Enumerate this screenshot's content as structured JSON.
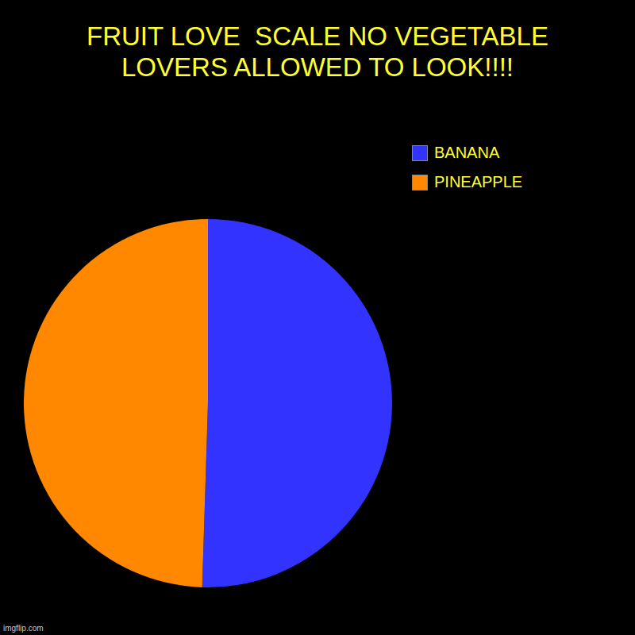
{
  "chart_data": {
    "type": "pie",
    "title": "FRUIT LOVE  SCALE NO VEGETABLE LOVERS ALLOWED TO LOOK!!!!",
    "categories": [
      "BANANA",
      "PINEAPPLE"
    ],
    "values": [
      50.5,
      49.5
    ],
    "colors": [
      "#3333ff",
      "#ff8800"
    ],
    "legend": "top-right",
    "caption": "imgflip.com"
  }
}
